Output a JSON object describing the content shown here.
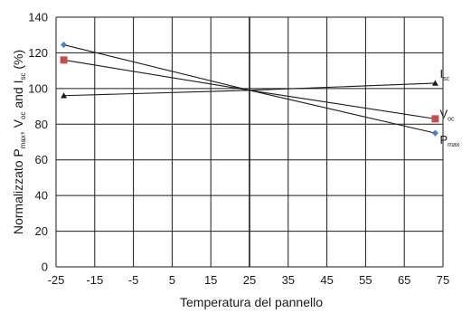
{
  "chart_data": {
    "type": "line",
    "xlabel": "Temperatura del pannello",
    "ylabel_parts": [
      {
        "t": "Normalizzato P",
        "sub": false
      },
      {
        "t": "max",
        "sub": true
      },
      {
        "t": ", V",
        "sub": false
      },
      {
        "t": "oc",
        "sub": true
      },
      {
        "t": " and I",
        "sub": false
      },
      {
        "t": "sc",
        "sub": true
      },
      {
        "t": " (%)",
        "sub": false
      }
    ],
    "xlim": [
      -25,
      75
    ],
    "ylim": [
      0,
      140
    ],
    "x_ticks": [
      -25,
      -15,
      -5,
      5,
      15,
      25,
      35,
      45,
      55,
      65,
      75
    ],
    "y_ticks": [
      0,
      20,
      40,
      60,
      80,
      100,
      120,
      140
    ],
    "grid": true,
    "series": [
      {
        "label": "P",
        "sub": "max",
        "marker": "diamond",
        "color": "#4f81bd",
        "x": [
          -23,
          25,
          73
        ],
        "y": [
          124.5,
          99,
          75
        ]
      },
      {
        "label": "V",
        "sub": "oc",
        "marker": "square",
        "color": "#c0504d",
        "x": [
          -23,
          25,
          73
        ],
        "y": [
          116,
          99,
          83
        ]
      },
      {
        "label": "I",
        "sub": "sc",
        "marker": "triangle",
        "color": "#1a1a1a",
        "x": [
          -23,
          25,
          73
        ],
        "y": [
          96,
          99,
          103
        ]
      }
    ]
  }
}
